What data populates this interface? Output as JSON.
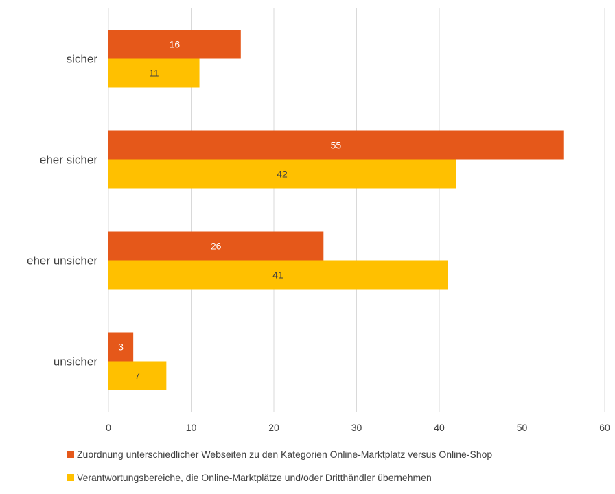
{
  "chart_data": {
    "type": "bar",
    "orientation": "horizontal",
    "categories": [
      "sicher",
      "eher sicher",
      "eher unsicher",
      "unsicher"
    ],
    "series": [
      {
        "name": "Zuordnung unterschiedlicher Webseiten zu den Kategorien Online-Marktplatz versus Online-Shop",
        "values": [
          16,
          55,
          26,
          3
        ],
        "color": "#E5581A"
      },
      {
        "name": "Verantwortungsbereiche, die Online-Marktplätze und/oder Dritthändler übernehmen",
        "values": [
          11,
          42,
          41,
          7
        ],
        "color": "#FFC000"
      }
    ],
    "xticks": [
      "0",
      "10",
      "20",
      "30",
      "40",
      "50",
      "60"
    ],
    "xlim": [
      0,
      60
    ],
    "grid": true,
    "legend_position": "bottom",
    "title": "",
    "xlabel": "",
    "ylabel": ""
  }
}
